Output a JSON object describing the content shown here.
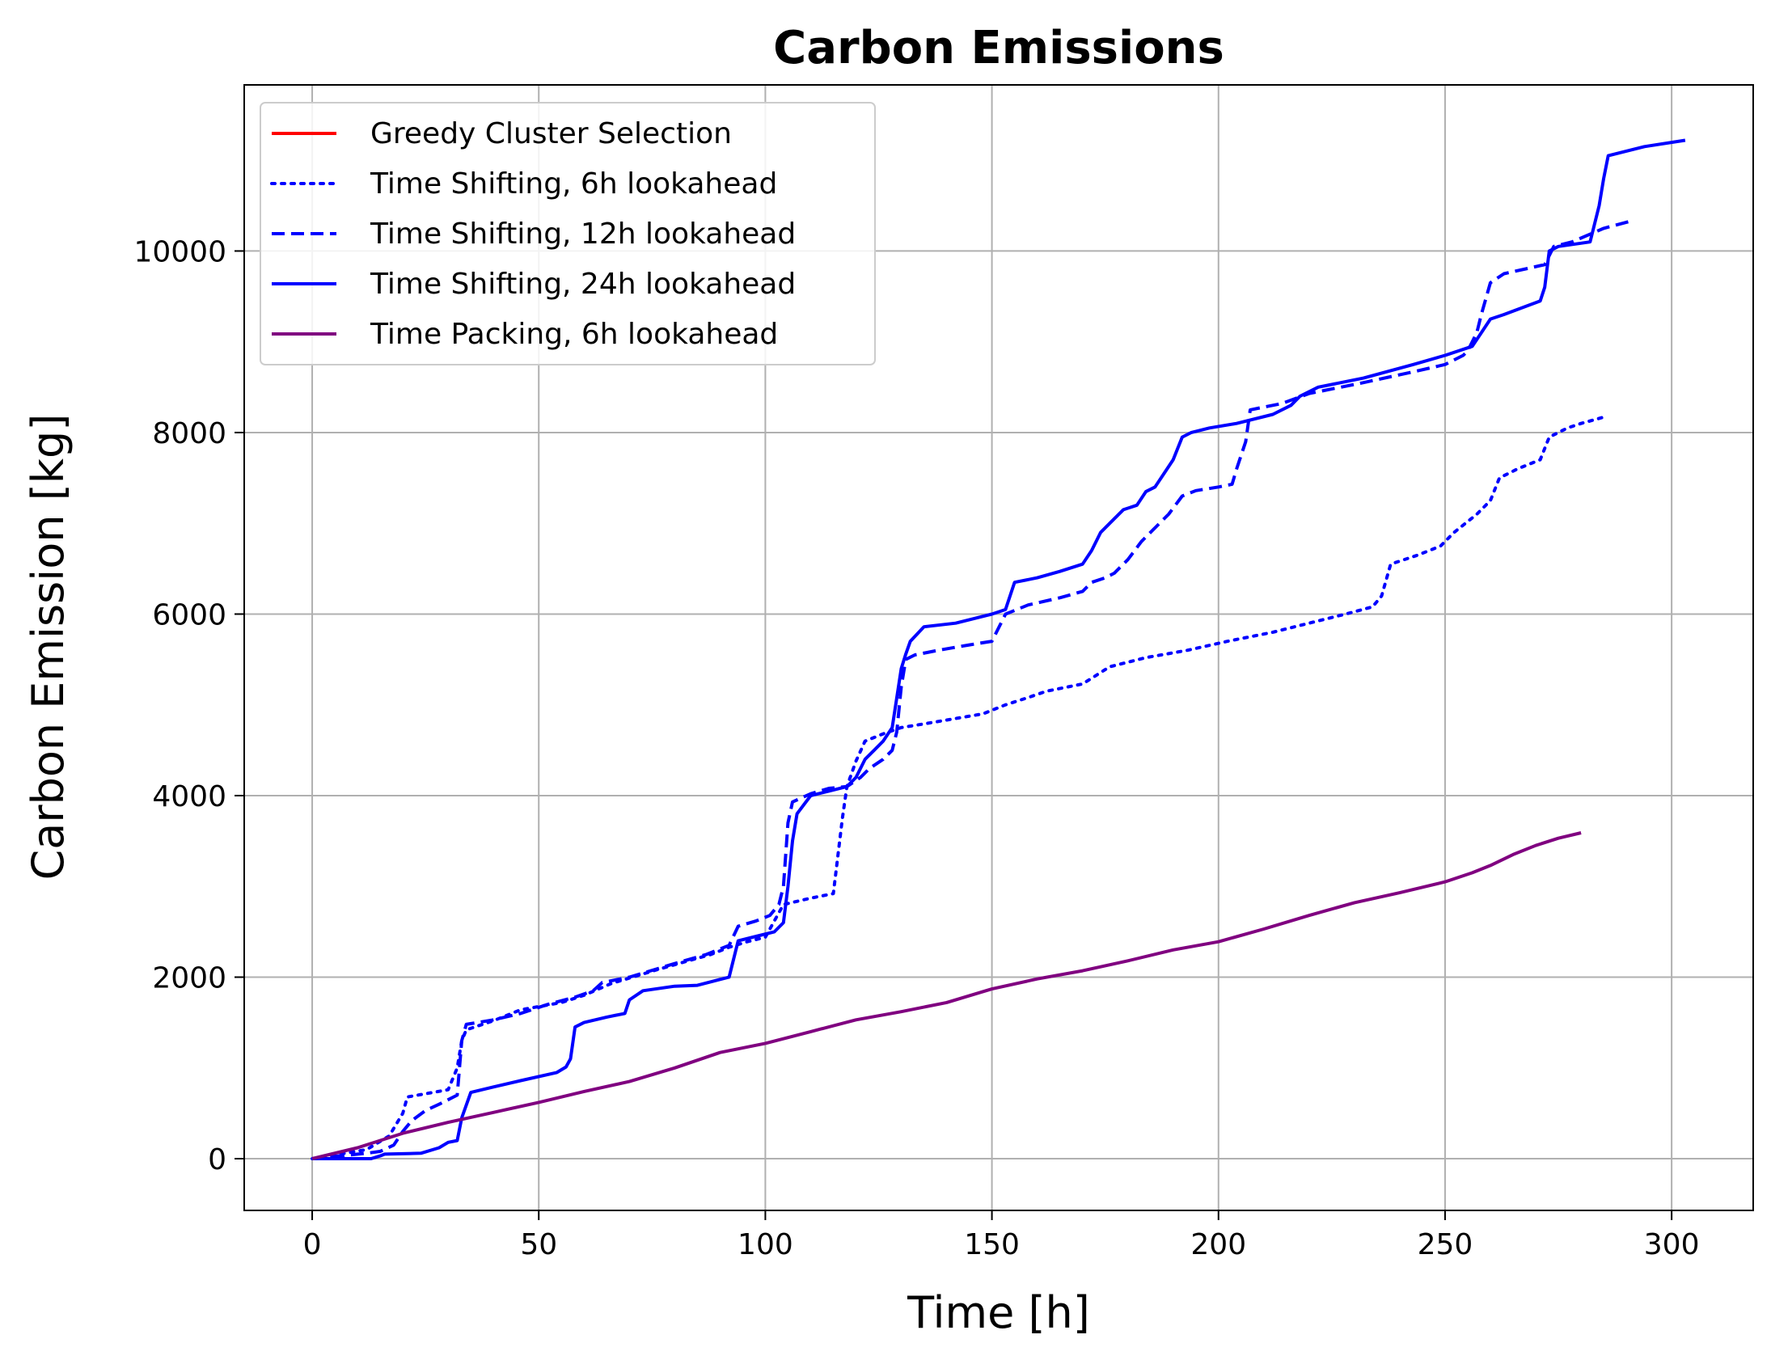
{
  "chart_data": {
    "type": "line",
    "title": "Carbon Emissions",
    "xlabel": "Time [h]",
    "ylabel": "Carbon Emission [kg]",
    "xlim": [
      -15,
      318
    ],
    "ylim": [
      -570,
      11830
    ],
    "xticks": [
      0,
      50,
      100,
      150,
      200,
      250,
      300
    ],
    "yticks": [
      0,
      2000,
      4000,
      6000,
      8000,
      10000
    ],
    "grid": true,
    "legend_position": "upper left",
    "series": [
      {
        "name": "Greedy Cluster Selection",
        "color": "#ff0000",
        "style": "solid",
        "x": [],
        "y": []
      },
      {
        "name": "Time Shifting, 6h lookahead",
        "color": "#0000ff",
        "style": "dotted",
        "x": [
          0,
          12,
          17,
          20,
          21,
          30,
          32,
          33,
          34,
          40,
          46,
          55,
          60,
          66,
          76,
          83,
          88,
          92,
          96,
          100,
          104,
          110,
          115,
          117,
          118,
          120,
          122,
          126,
          130,
          135,
          142,
          148,
          153,
          158,
          162,
          170,
          176,
          184,
          193,
          202,
          212,
          220,
          228,
          234,
          236,
          238,
          244,
          249,
          252,
          257,
          260,
          262,
          266,
          271,
          273,
          277,
          280,
          285
        ],
        "y": [
          0,
          100,
          250,
          500,
          680,
          760,
          1000,
          1300,
          1420,
          1520,
          1640,
          1720,
          1800,
          1930,
          2080,
          2180,
          2250,
          2330,
          2390,
          2440,
          2800,
          2870,
          2920,
          3750,
          4100,
          4380,
          4600,
          4680,
          4750,
          4790,
          4850,
          4900,
          5000,
          5080,
          5150,
          5230,
          5420,
          5520,
          5600,
          5700,
          5800,
          5900,
          6000,
          6080,
          6200,
          6550,
          6650,
          6750,
          6900,
          7100,
          7250,
          7500,
          7600,
          7700,
          7950,
          8050,
          8100,
          8170
        ]
      },
      {
        "name": "Time Shifting, 12h lookahead",
        "color": "#0000ff",
        "style": "dashed",
        "x": [
          0,
          12,
          15,
          18,
          20,
          22,
          25,
          28,
          32,
          33,
          34,
          40,
          46,
          52,
          58,
          62,
          64,
          70,
          80,
          87,
          92,
          94,
          98,
          101,
          103,
          104,
          105,
          106,
          110,
          114,
          118,
          121,
          123,
          126,
          128,
          129,
          130,
          131,
          133,
          138,
          145,
          150,
          151,
          153,
          158,
          165,
          170,
          172,
          175,
          177,
          180,
          183,
          187,
          189,
          192,
          195,
          200,
          203,
          204,
          206,
          207,
          214,
          220,
          232,
          244,
          250,
          254,
          255,
          257,
          258,
          260,
          263,
          272,
          274,
          278,
          285,
          291
        ],
        "y": [
          0,
          60,
          80,
          150,
          300,
          420,
          530,
          600,
          700,
          1300,
          1480,
          1530,
          1600,
          1700,
          1780,
          1850,
          1940,
          2000,
          2150,
          2250,
          2350,
          2560,
          2620,
          2680,
          2800,
          3000,
          3700,
          3930,
          4020,
          4080,
          4100,
          4200,
          4300,
          4400,
          4500,
          4700,
          5200,
          5500,
          5550,
          5600,
          5660,
          5700,
          5800,
          6000,
          6100,
          6180,
          6250,
          6350,
          6400,
          6450,
          6600,
          6800,
          7000,
          7100,
          7300,
          7360,
          7400,
          7430,
          7600,
          7900,
          8250,
          8320,
          8430,
          8550,
          8680,
          8750,
          8850,
          8900,
          9100,
          9300,
          9650,
          9750,
          9850,
          10050,
          10100,
          10250,
          10330
        ]
      },
      {
        "name": "Time Shifting, 24h lookahead",
        "color": "#0000ff",
        "style": "solid",
        "x": [
          0,
          13,
          15,
          16,
          24,
          28,
          30,
          32,
          33,
          35,
          40,
          46,
          54,
          56,
          57,
          58,
          60,
          65,
          69,
          70,
          73,
          80,
          85,
          92,
          94,
          98,
          102,
          104,
          105,
          106,
          107,
          110,
          114,
          118,
          120,
          122,
          124,
          126,
          128,
          130,
          131,
          132,
          135,
          142,
          150,
          153,
          155,
          160,
          165,
          170,
          172,
          174,
          176,
          179,
          182,
          184,
          186,
          188,
          190,
          192,
          194,
          198,
          204,
          212,
          216,
          218,
          222,
          232,
          243,
          250,
          256,
          258,
          260,
          263,
          271,
          272,
          273,
          275,
          282,
          284,
          285,
          286,
          290,
          294,
          303
        ],
        "y": [
          0,
          0,
          30,
          50,
          60,
          120,
          180,
          200,
          450,
          730,
          790,
          860,
          950,
          1010,
          1100,
          1450,
          1500,
          1560,
          1600,
          1750,
          1850,
          1900,
          1910,
          2000,
          2400,
          2450,
          2500,
          2600,
          3000,
          3500,
          3800,
          4000,
          4050,
          4100,
          4200,
          4400,
          4500,
          4600,
          4750,
          5400,
          5560,
          5700,
          5860,
          5900,
          6000,
          6050,
          6350,
          6400,
          6470,
          6550,
          6700,
          6900,
          7000,
          7150,
          7200,
          7350,
          7400,
          7550,
          7700,
          7950,
          8000,
          8050,
          8100,
          8200,
          8300,
          8400,
          8500,
          8600,
          8750,
          8850,
          8950,
          9100,
          9250,
          9300,
          9450,
          9600,
          10000,
          10050,
          10100,
          10500,
          10800,
          11050,
          11100,
          11150,
          11220
        ]
      },
      {
        "name": "Time Packing, 6h lookahead",
        "color": "#800080",
        "style": "solid",
        "x": [
          0,
          10,
          20,
          30,
          40,
          50,
          60,
          70,
          80,
          90,
          100,
          110,
          120,
          130,
          140,
          150,
          160,
          170,
          180,
          190,
          200,
          210,
          220,
          230,
          240,
          250,
          256,
          260,
          265,
          270,
          275,
          280
        ],
        "y": [
          0,
          120,
          280,
          400,
          510,
          620,
          740,
          850,
          1000,
          1170,
          1270,
          1400,
          1530,
          1620,
          1720,
          1870,
          1980,
          2070,
          2180,
          2300,
          2390,
          2530,
          2680,
          2820,
          2930,
          3050,
          3150,
          3230,
          3350,
          3450,
          3530,
          3590
        ]
      }
    ]
  }
}
